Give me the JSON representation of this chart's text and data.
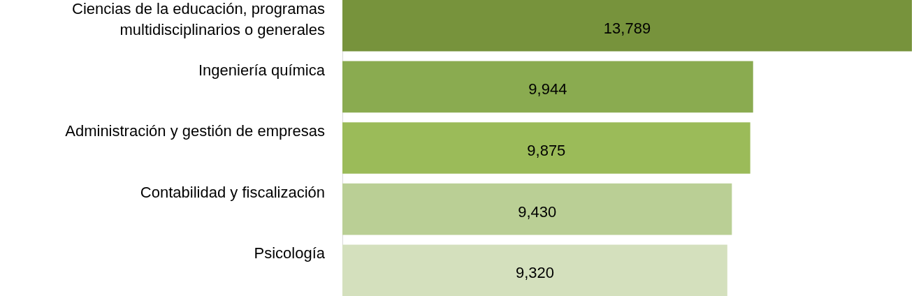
{
  "chart_data": {
    "type": "bar",
    "orientation": "horizontal",
    "value_labels": [
      "13,789",
      "9,944",
      "9,875",
      "9,430",
      "9,320"
    ],
    "categories": [
      "Ciencias de la educación, programas multidisciplinarios o generales",
      "Ingeniería química",
      "Administración y gestión de empresas",
      "Contabilidad y fiscalización",
      "Psicología"
    ],
    "values": [
      13789,
      9944,
      9875,
      9430,
      9320
    ],
    "colors": [
      "#77933c",
      "#8aab50",
      "#9bbb59",
      "#bacf95",
      "#d4e0bd"
    ]
  }
}
